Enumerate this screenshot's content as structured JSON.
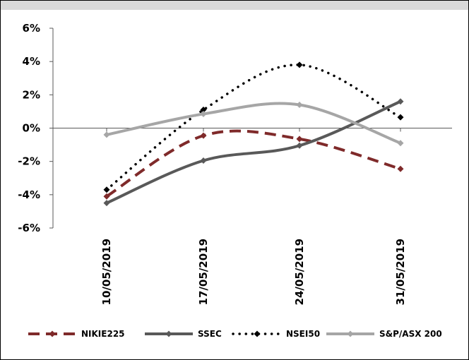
{
  "chart_data": {
    "type": "line",
    "title": "",
    "xlabel": "",
    "ylabel": "",
    "categories": [
      "10/05/2019",
      "17/05/2019",
      "24/05/2019",
      "31/05/2019"
    ],
    "ylim": [
      -0.06,
      0.06
    ],
    "yticks": [
      -0.06,
      -0.04,
      -0.02,
      0.0,
      0.02,
      0.04,
      0.06
    ],
    "ytick_labels": [
      "-6%",
      "-4%",
      "-2%",
      "0%",
      "2%",
      "4%",
      "6%"
    ],
    "grid": false,
    "legend_position": "bottom",
    "series": [
      {
        "name": "NIKIE225",
        "values": [
          -0.041,
          -0.0045,
          -0.0065,
          -0.0245
        ],
        "color": "#7f2a2a",
        "line_style": "dashed",
        "marker": "diamond"
      },
      {
        "name": "SSEC",
        "values": [
          -0.045,
          -0.0195,
          -0.0105,
          0.016
        ],
        "color": "#595959",
        "line_style": "solid",
        "marker": "diamond"
      },
      {
        "name": "NSEI50",
        "values": [
          -0.037,
          0.011,
          0.038,
          0.0065
        ],
        "color": "#000000",
        "line_style": "dotted",
        "marker": "diamond"
      },
      {
        "name": "S&P/ASX 200",
        "values": [
          -0.004,
          0.0085,
          0.014,
          -0.009
        ],
        "color": "#a6a6a6",
        "line_style": "solid",
        "marker": "diamond"
      }
    ]
  }
}
